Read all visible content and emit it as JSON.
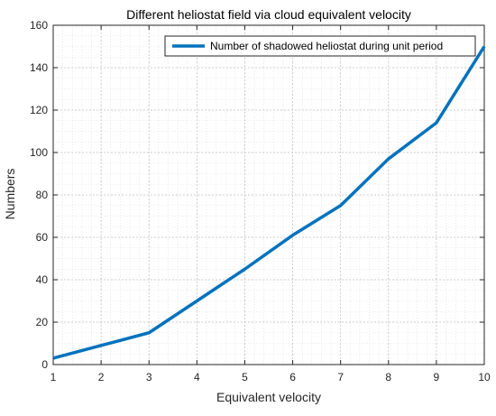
{
  "chart_data": {
    "type": "line",
    "title": "Different heliostat field via cloud equivalent velocity",
    "xlabel": "Equivalent velocity",
    "ylabel": "Numbers",
    "xlim": [
      1,
      10
    ],
    "ylim": [
      0,
      160
    ],
    "x_ticks": [
      1,
      2,
      3,
      4,
      5,
      6,
      7,
      8,
      9,
      10
    ],
    "y_ticks": [
      0,
      20,
      40,
      60,
      80,
      100,
      120,
      140,
      160
    ],
    "grid": true,
    "minor_grid": true,
    "legend_position": "top-right",
    "series": [
      {
        "name": "Number of shadowed heliostat during unit period",
        "color": "#0072BD",
        "x": [
          1,
          2,
          3,
          4,
          5,
          6,
          7,
          8,
          9,
          10
        ],
        "y": [
          3,
          9,
          15,
          30,
          45,
          61,
          75,
          97,
          114,
          150
        ]
      }
    ]
  }
}
